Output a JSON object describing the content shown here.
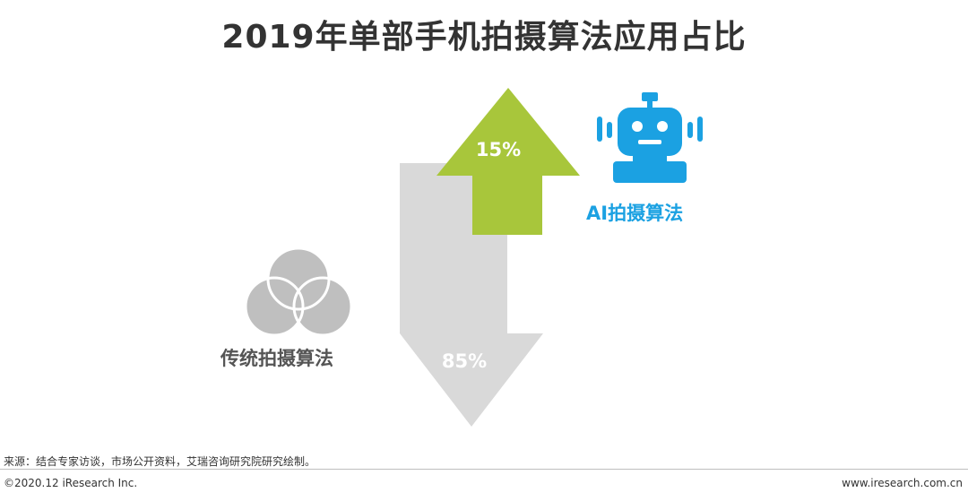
{
  "title": "2019年单部手机拍摄算法应用占比",
  "chart_data": {
    "type": "pie",
    "categories": [
      "AI拍摄算法",
      "传统拍摄算法"
    ],
    "values": [
      15,
      85
    ],
    "value_labels": [
      "15%",
      "85%"
    ],
    "colors": [
      "#a8c63b",
      "#d9d9d9"
    ],
    "label_colors": [
      "#1ba1e2",
      "#555555"
    ],
    "icons": [
      "robot-icon",
      "venn-circles-icon"
    ]
  },
  "footer": {
    "source": "来源：结合专家访谈，市场公开资料，艾瑞咨询研究院研究绘制。",
    "copyright": "©2020.12 iResearch Inc.",
    "website": "www.iresearch.com.cn"
  }
}
